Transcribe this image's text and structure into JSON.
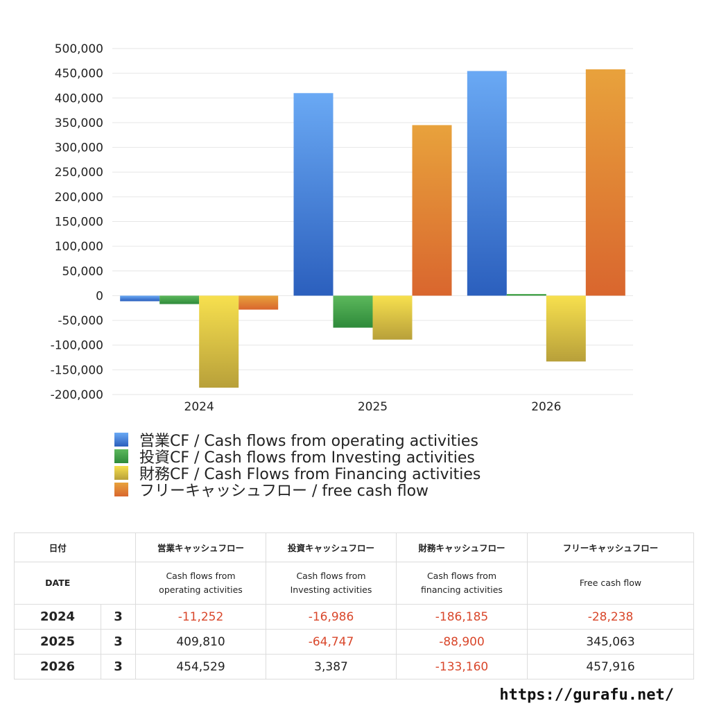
{
  "chart_data": {
    "type": "bar",
    "title": "",
    "xlabel": "",
    "ylabel": "",
    "categories": [
      "2024",
      "2025",
      "2026"
    ],
    "ylim": [
      -200000,
      500000
    ],
    "yticks": [
      500000,
      450000,
      400000,
      350000,
      300000,
      250000,
      200000,
      150000,
      100000,
      50000,
      0,
      -50000,
      -100000,
      -150000,
      -200000
    ],
    "ytick_labels": [
      "500,000",
      "450,000",
      "400,000",
      "350,000",
      "300,000",
      "250,000",
      "200,000",
      "150,000",
      "100,000",
      "50,000",
      "0",
      "-50,000",
      "-100,000",
      "-150,000",
      "-200,000"
    ],
    "grid": true,
    "legend_position": "bottom",
    "series": [
      {
        "name": "営業CF / Cash flows from operating activities",
        "values": [
          -11252,
          409810,
          454529
        ],
        "color_top": "#6aa9f4",
        "color_bottom": "#2b5fbd"
      },
      {
        "name": "投資CF / Cash flows from Investing activities",
        "values": [
          -16986,
          -64747,
          3387
        ],
        "color_top": "#5cb85c",
        "color_bottom": "#2e8a3a"
      },
      {
        "name": "財務CF / Cash Flows from Financing activities",
        "values": [
          -186185,
          -88900,
          -133160
        ],
        "color_top": "#f7e04e",
        "color_bottom": "#b8a03a"
      },
      {
        "name": "フリーキャッシュフロー / free cash flow",
        "values": [
          -28238,
          345063,
          457916
        ],
        "color_top": "#e8a23c",
        "color_bottom": "#d9662e"
      }
    ]
  },
  "table": {
    "header_jp": [
      "日付",
      "",
      "営業キャッシュフロー",
      "投資キャッシュフロー",
      "財務キャッシュフロー",
      "フリーキャッシュフロー"
    ],
    "header_en": [
      "DATE",
      "",
      "Cash flows from operating activities",
      "Cash flows from Investing activities",
      "Cash flows from financing activities",
      "Free cash flow"
    ],
    "rows": [
      {
        "year": "2024",
        "month": "3",
        "cells": [
          "-11,252",
          "-16,986",
          "-186,185",
          "-28,238"
        ]
      },
      {
        "year": "2025",
        "month": "3",
        "cells": [
          "409,810",
          "-64,747",
          "-88,900",
          "345,063"
        ]
      },
      {
        "year": "2026",
        "month": "3",
        "cells": [
          "454,529",
          "3,387",
          "-133,160",
          "457,916"
        ]
      }
    ]
  },
  "footer": {
    "url": "https://gurafu.net/"
  }
}
